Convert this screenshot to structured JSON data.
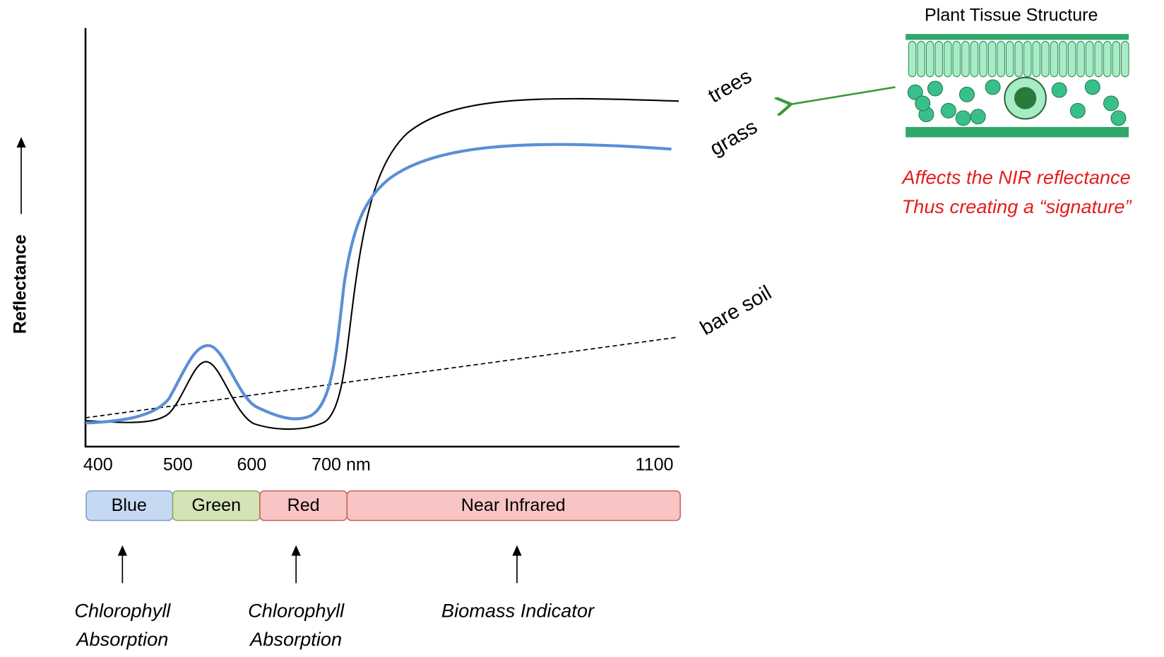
{
  "axis": {
    "y_label": "Reflectance",
    "x_labels": [
      "400",
      "500",
      "600",
      "700 nm",
      "1100"
    ]
  },
  "curves": [
    {
      "label": "trees"
    },
    {
      "label": "grass"
    },
    {
      "label": "bare soil"
    }
  ],
  "bands": [
    {
      "label": "Blue"
    },
    {
      "label": "Green"
    },
    {
      "label": "Red"
    },
    {
      "label": "Near Infrared"
    }
  ],
  "annotations": [
    {
      "lines": [
        "Chlorophyll",
        "Absorption"
      ]
    },
    {
      "lines": [
        "Chlorophyll",
        "Absorption"
      ]
    },
    {
      "lines": [
        "Biomass Indicator"
      ]
    }
  ],
  "inset": {
    "title": "Plant Tissue Structure",
    "caption": [
      "Affects the NIR reflectance",
      "Thus creating a “signature”"
    ]
  }
}
